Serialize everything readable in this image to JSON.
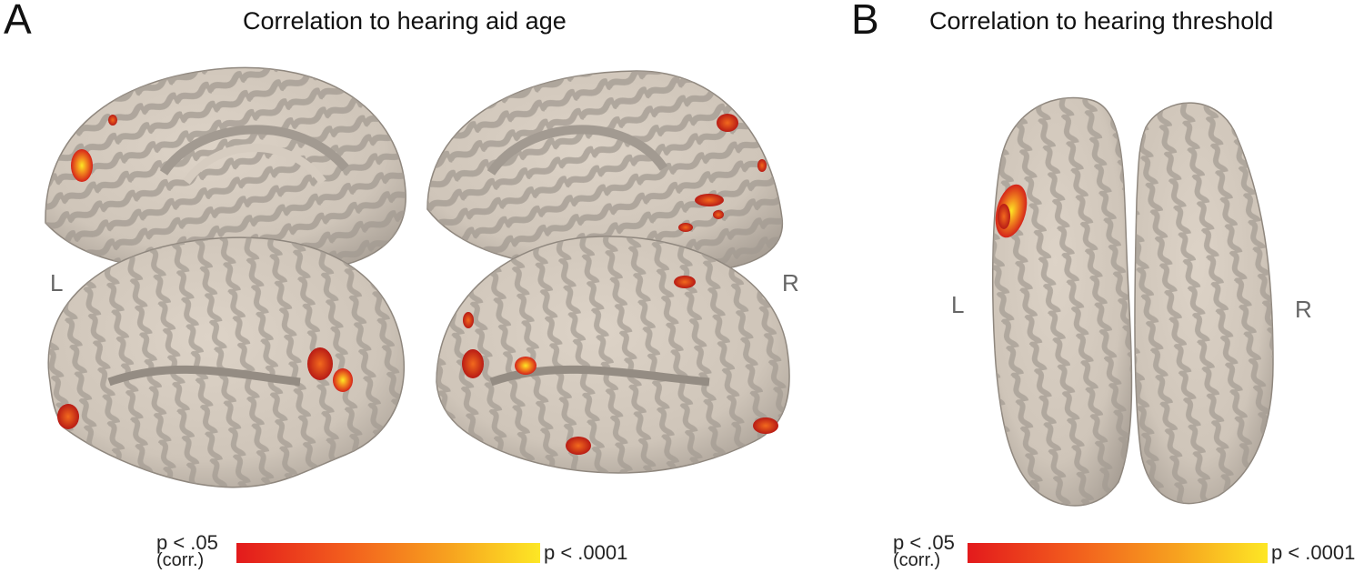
{
  "panels": [
    {
      "letter": "A",
      "title": "Correlation to hearing aid age",
      "left_label": "L",
      "right_label": "R",
      "colorbar": {
        "low_p": "p < .05",
        "low_corr": "(corr.)",
        "high": "p < .0001",
        "color_low": "#e31a1c",
        "color_high": "#fde725"
      }
    },
    {
      "letter": "B",
      "title": "Correlation to hearing threshold",
      "left_label": "L",
      "right_label": "R",
      "colorbar": {
        "low_p": "p < .05",
        "low_corr": "(corr.)",
        "high": "p < .0001",
        "color_low": "#e31a1c",
        "color_high": "#fde725"
      }
    }
  ],
  "colors": {
    "cortex_gyri": "#d6ccc0",
    "cortex_sulci": "#a29a91"
  }
}
